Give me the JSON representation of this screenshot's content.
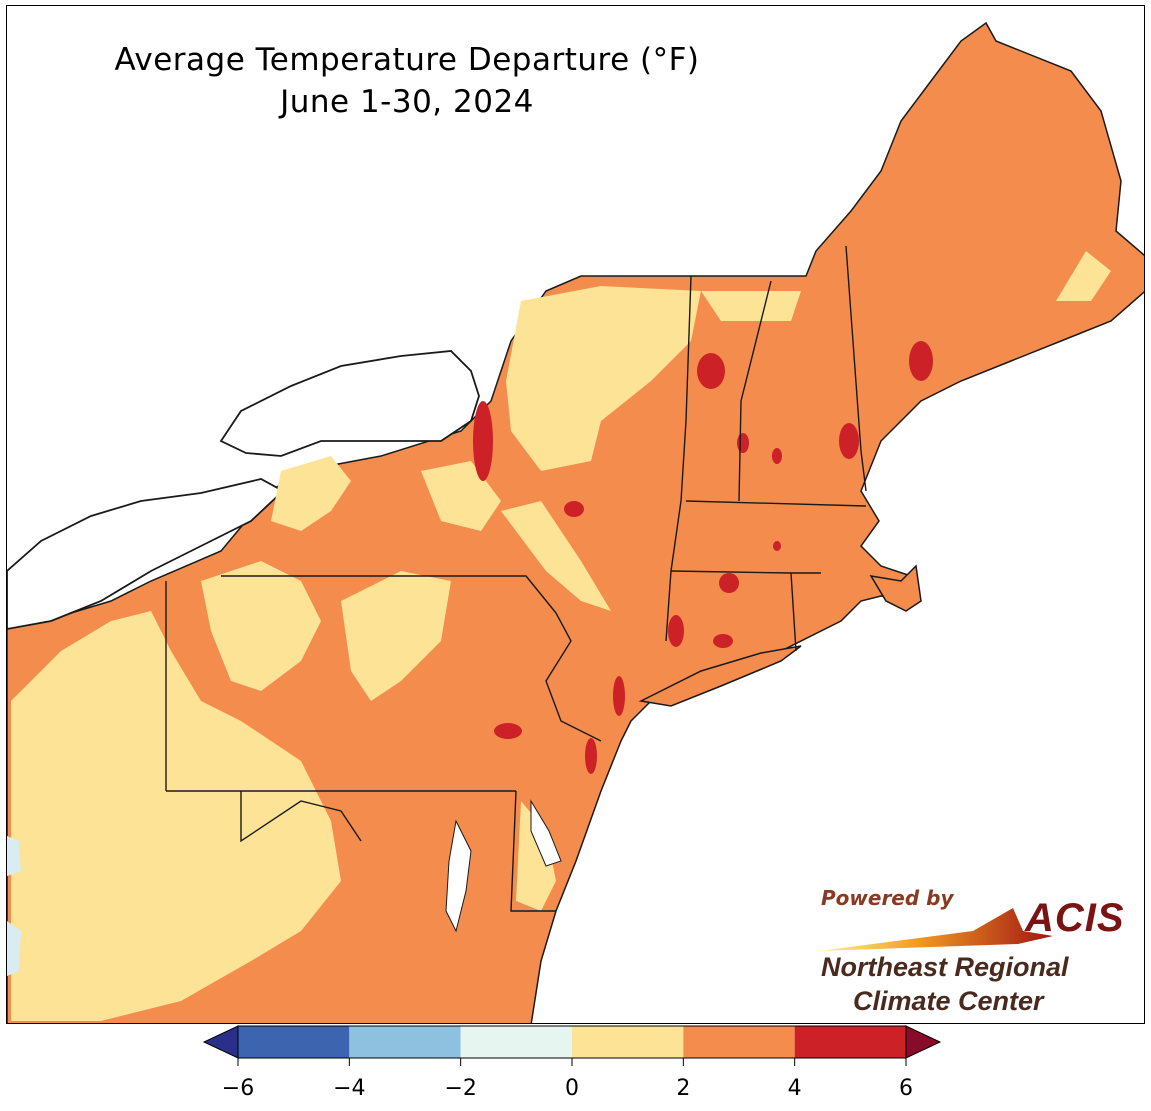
{
  "map": {
    "title": "Average Temperature Departure (°F)",
    "subtitle": "June 1-30, 2024",
    "colors": {
      "ocean": "#ffffff",
      "land_base": "#f48c4d",
      "cool_band": "#fde396",
      "warm_band": "#cb2127",
      "slight_cool": "#d8ecf1",
      "border": "#1a1a1a",
      "county_line": "#b06040"
    }
  },
  "legend": {
    "ticks": [
      "−6",
      "−4",
      "−2",
      "0",
      "2",
      "4",
      "6"
    ],
    "bins": [
      {
        "range": "-6 to -4",
        "color": "#3d64af"
      },
      {
        "range": "-4 to -2",
        "color": "#8ec1df"
      },
      {
        "range": "-2 to 0",
        "color": "#e6f5ef"
      },
      {
        "range": "0 to 2",
        "color": "#fde396"
      },
      {
        "range": "2 to 4",
        "color": "#f48c4d"
      },
      {
        "range": "4 to 6",
        "color": "#cb2127"
      }
    ],
    "under_color": "#2a2f8a",
    "over_color": "#8a0a2a"
  },
  "logo": {
    "powered_by": "Powered by",
    "brand": "ACIS",
    "org_line1": "Northeast Regional",
    "org_line2": "Climate Center"
  }
}
